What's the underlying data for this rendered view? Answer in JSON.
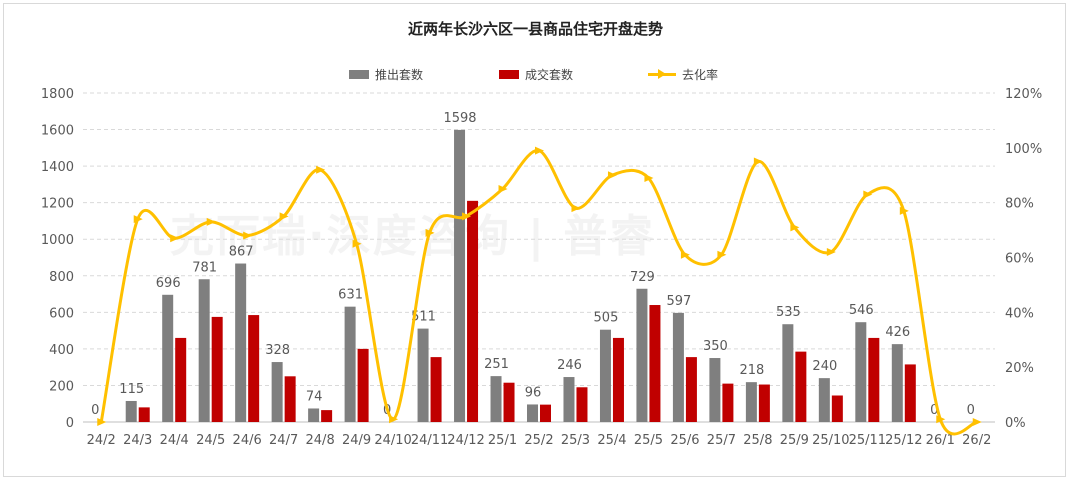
{
  "chart_data": {
    "type": "bar",
    "title": "近两年长沙六区一县商品住宅开盘走势",
    "categories": [
      "24/2",
      "24/3",
      "24/4",
      "24/5",
      "24/6",
      "24/7",
      "24/8",
      "24/9",
      "24/10",
      "24/11",
      "24/12",
      "25/1",
      "25/2",
      "25/3",
      "25/4",
      "25/5",
      "25/6",
      "25/7",
      "25/8",
      "25/9",
      "25/10",
      "25/11",
      "25/12",
      "26/1",
      "26/2"
    ],
    "series": [
      {
        "name": "推出套数",
        "kind": "bar",
        "axis": "left",
        "color": "#7f7f7f",
        "values": [
          0,
          115,
          696,
          781,
          867,
          328,
          74,
          631,
          0,
          511,
          1598,
          251,
          96,
          246,
          505,
          729,
          597,
          350,
          218,
          535,
          240,
          546,
          426,
          0,
          0
        ],
        "labels": [
          "0",
          "115",
          "696",
          "781",
          "867",
          "328",
          "74",
          "631",
          "0",
          "511",
          "1598",
          "251",
          "96",
          "246",
          "505",
          "729",
          "597",
          "350",
          "218",
          "535",
          "240",
          "546",
          "426",
          "0",
          "0"
        ]
      },
      {
        "name": "成交套数",
        "kind": "bar",
        "axis": "left",
        "color": "#c00000",
        "values": [
          0,
          80,
          460,
          575,
          585,
          250,
          65,
          400,
          0,
          355,
          1210,
          215,
          95,
          190,
          460,
          640,
          355,
          210,
          205,
          385,
          145,
          460,
          315,
          0,
          0
        ]
      },
      {
        "name": "去化率",
        "kind": "line",
        "axis": "right",
        "color": "#ffc000",
        "values": [
          0,
          74,
          67,
          73,
          68,
          75,
          92,
          65,
          1,
          69,
          75,
          85,
          99,
          78,
          90,
          89,
          61,
          61,
          95,
          71,
          62,
          83,
          77,
          1,
          0
        ]
      }
    ],
    "y_left": {
      "min": 0,
      "max": 1800,
      "ticks": [
        "0",
        "200",
        "400",
        "600",
        "800",
        "1000",
        "1200",
        "1400",
        "1600",
        "1800"
      ]
    },
    "y_right": {
      "min": 0,
      "max": 120,
      "ticks": [
        "0%",
        "20%",
        "40%",
        "60%",
        "80%",
        "100%",
        "120%"
      ]
    },
    "grid": true,
    "legend_position": "top-center"
  },
  "watermark": "克而瑞·深度咨询 | 普睿"
}
